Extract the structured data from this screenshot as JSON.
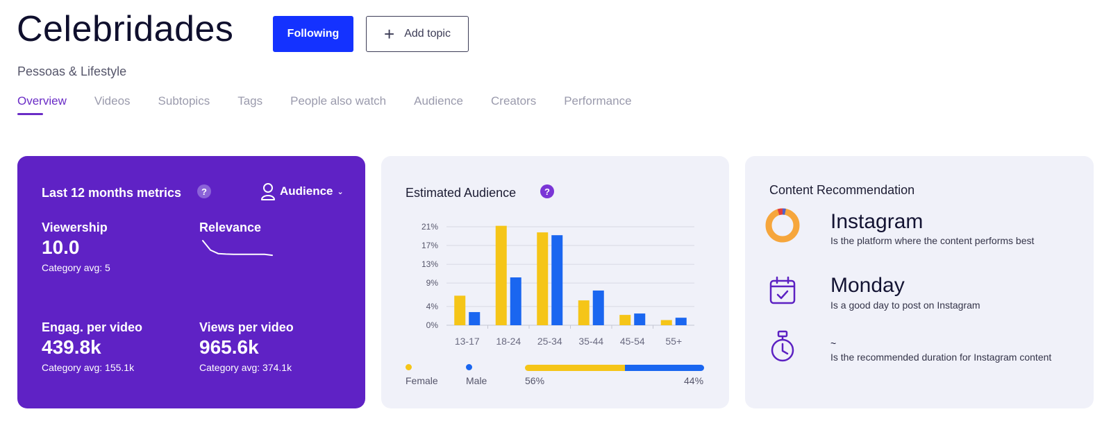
{
  "header": {
    "title": "Celebridades",
    "following_label": "Following",
    "add_topic_label": "Add topic",
    "category": "Pessoas & Lifestyle"
  },
  "tabs": [
    {
      "label": "Overview",
      "active": true
    },
    {
      "label": "Videos",
      "active": false
    },
    {
      "label": "Subtopics",
      "active": false
    },
    {
      "label": "Tags",
      "active": false
    },
    {
      "label": "People also watch",
      "active": false
    },
    {
      "label": "Audience",
      "active": false
    },
    {
      "label": "Creators",
      "active": false
    },
    {
      "label": "Performance",
      "active": false
    }
  ],
  "metrics": {
    "title": "Last 12 months metrics",
    "help": "?",
    "audience_label": "Audience",
    "viewership": {
      "label": "Viewership",
      "value": "10.0",
      "avg": "Category avg: 5"
    },
    "relevance": {
      "label": "Relevance",
      "trend": [
        10,
        6,
        4.5,
        4.3,
        4.2,
        4.2,
        4.2,
        4.2,
        4.2,
        3.8
      ]
    },
    "engagement": {
      "label": "Engag. per video",
      "value": "439.8k",
      "avg": "Category avg: 155.1k"
    },
    "views": {
      "label": "Views per video",
      "value": "965.6k",
      "avg": "Category avg: 374.1k"
    }
  },
  "audience": {
    "title": "Estimated Audience",
    "help": "?",
    "legend_female": "Female",
    "legend_male": "Male",
    "female_share": 56,
    "male_share": 44,
    "female_share_label": "56%",
    "male_share_label": "44%"
  },
  "chart_data": {
    "type": "bar",
    "categories": [
      "13-17",
      "18-24",
      "25-34",
      "35-44",
      "45-54",
      "55+"
    ],
    "series": [
      {
        "name": "Female",
        "color": "#f5c518",
        "values": [
          6.3,
          21.2,
          19.8,
          5.3,
          2.2,
          1.1
        ]
      },
      {
        "name": "Male",
        "color": "#1a66f0",
        "values": [
          2.8,
          10.2,
          19.2,
          7.4,
          2.5,
          1.6
        ]
      }
    ],
    "ylim": [
      0,
      21
    ],
    "yticks": [
      0,
      4,
      9,
      13,
      17,
      21
    ],
    "ytick_labels": [
      "0%",
      "4%",
      "9%",
      "13%",
      "17%",
      "21%"
    ],
    "grid": true
  },
  "recommendation": {
    "title": "Content Recommendation",
    "platform": {
      "head": "Instagram",
      "sub": "Is the platform where the content performs best",
      "icon": "donut-chart-icon",
      "ring_color": "#f6a63c"
    },
    "day": {
      "head": "Monday",
      "sub": "Is a good day to post on Instagram",
      "icon": "calendar-check-icon"
    },
    "duration": {
      "head": "~",
      "sub": "Is the recommended duration for Instagram content",
      "icon": "stopwatch-icon"
    }
  },
  "colors": {
    "brand": "#1432ff",
    "accent": "#6a2cc6",
    "metrics_bg": "#5f22c5",
    "female": "#f5c518",
    "male": "#1a66f0"
  }
}
